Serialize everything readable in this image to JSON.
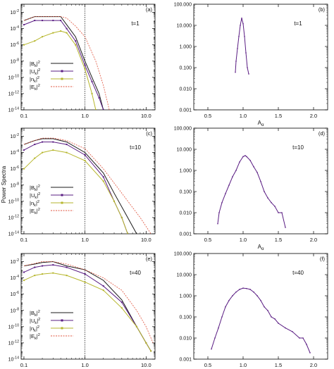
{
  "figure": {
    "ylabel": "Power Spectra",
    "colors": {
      "B": "#1a1a1a",
      "U": "#5a1d83",
      "n": "#b6b62c",
      "E": "#e0553f"
    }
  },
  "chart_data": [
    {
      "id": "a",
      "panel_label": "(a)",
      "annotation": "t=1",
      "type": "line",
      "xscale": "log",
      "yscale": "log",
      "xlim": [
        0.09,
        14
      ],
      "ylim": [
        1e-14,
        0.1
      ],
      "xticks": [
        "0.1",
        "1.0",
        "10.0"
      ],
      "yticks": [
        "10^-2",
        "10^-4",
        "10^-6",
        "10^-8",
        "10^-10",
        "10^-12",
        "10^-14"
      ],
      "xlabel": "",
      "vline_x": 1.0,
      "show_legend": true,
      "legend": [
        "|B_k|^2",
        "|U_k|^2",
        "|n_k|^2",
        "|E_k|^2"
      ],
      "series": [
        {
          "name": "|B_k|^2",
          "key": "B",
          "marker": "none",
          "dash": "solid",
          "x": [
            0.1,
            0.15,
            0.2,
            0.3,
            0.4,
            0.5,
            0.7,
            1.0,
            1.3,
            1.7,
            2.0
          ],
          "y": [
            0.001,
            0.003,
            0.003,
            0.003,
            0.003,
            0.0003,
            1e-05,
            1e-08,
            1e-10,
            1e-12,
            1e-14
          ]
        },
        {
          "name": "|U_k|^2",
          "key": "U",
          "marker": "square",
          "dash": "solid",
          "x": [
            0.1,
            0.15,
            0.2,
            0.3,
            0.4,
            0.5,
            0.7,
            1.0,
            1.3,
            1.7,
            2.0
          ],
          "y": [
            0.0003,
            0.001,
            0.001,
            0.001,
            0.001,
            0.0001,
            3e-06,
            3e-09,
            3e-11,
            3e-13,
            1e-14
          ]
        },
        {
          "name": "|n_k|^2",
          "key": "n",
          "marker": "square",
          "dash": "solid",
          "x": [
            0.1,
            0.15,
            0.2,
            0.3,
            0.4,
            0.5,
            0.7,
            1.0,
            1.3,
            1.5
          ],
          "y": [
            1e-06,
            3e-06,
            1e-05,
            3e-05,
            5e-05,
            3e-05,
            1e-06,
            1e-09,
            1e-12,
            1e-14
          ]
        },
        {
          "name": "|E_k|^2",
          "key": "E",
          "marker": "none",
          "dash": "dashed",
          "x": [
            0.1,
            0.15,
            0.2,
            0.3,
            0.4,
            0.5,
            0.7,
            1.0,
            1.5,
            2.0,
            2.5
          ],
          "y": [
            0.001,
            0.003,
            0.003,
            0.003,
            0.003,
            0.002,
            0.0002,
            1e-05,
            1e-08,
            1e-11,
            1e-14
          ]
        }
      ]
    },
    {
      "id": "b",
      "panel_label": "(b)",
      "annotation": "t=1",
      "type": "line",
      "xscale": "linear",
      "yscale": "log",
      "xlim": [
        0.3,
        2.2
      ],
      "ylim": [
        0.001,
        100
      ],
      "xticks": [
        "0.5",
        "1.0",
        "1.5",
        "2.0"
      ],
      "yticks": [
        "100.000",
        "10.000",
        "1.000",
        "0.100",
        "0.010",
        "0.001"
      ],
      "xlabel": "A_α",
      "vline_x": null,
      "show_legend": false,
      "legend": [],
      "series": [
        {
          "name": "",
          "key": "U",
          "marker": "tiny",
          "dash": "solid",
          "x": [
            0.89,
            0.9,
            0.92,
            0.94,
            0.96,
            0.98,
            1.0,
            1.02,
            1.04,
            1.06,
            1.08
          ],
          "y": [
            0.06,
            0.2,
            0.8,
            3,
            10,
            22,
            12,
            3,
            0.5,
            0.1,
            0.05
          ]
        }
      ]
    },
    {
      "id": "c",
      "panel_label": "(c)",
      "annotation": "t=10",
      "type": "line",
      "xscale": "log",
      "yscale": "log",
      "xlim": [
        0.09,
        14
      ],
      "ylim": [
        1e-14,
        0.1
      ],
      "xticks": [
        "0.1",
        "1.0",
        "10.0"
      ],
      "yticks": [
        "10^-2",
        "10^-4",
        "10^-6",
        "10^-8",
        "10^-10",
        "10^-12",
        "10^-14"
      ],
      "xlabel": "",
      "vline_x": 1.0,
      "show_legend": true,
      "legend": [
        "|B_k|^2",
        "|U_k|^2",
        "|n_k|^2",
        "|E_k|^2"
      ],
      "series": [
        {
          "name": "|B_k|^2",
          "key": "B",
          "marker": "none",
          "dash": "solid",
          "x": [
            0.1,
            0.15,
            0.2,
            0.3,
            0.5,
            1.0,
            2.0,
            3.0,
            5.0,
            7.0
          ],
          "y": [
            0.001,
            0.003,
            0.005,
            0.005,
            0.002,
            0.0001,
            3e-07,
            1e-09,
            1e-12,
            1e-14
          ]
        },
        {
          "name": "|U_k|^2",
          "key": "U",
          "marker": "square",
          "dash": "solid",
          "x": [
            0.1,
            0.15,
            0.2,
            0.3,
            0.5,
            1.0,
            2.0,
            3.0,
            4.0,
            5.0
          ],
          "y": [
            0.0002,
            0.001,
            0.002,
            0.002,
            0.001,
            5e-05,
            1e-07,
            1e-10,
            1e-12,
            1e-14
          ]
        },
        {
          "name": "|n_k|^2",
          "key": "n",
          "marker": "square",
          "dash": "solid",
          "x": [
            0.1,
            0.15,
            0.2,
            0.3,
            0.5,
            1.0,
            2.0,
            3.0,
            4.0,
            5.0
          ],
          "y": [
            1e-06,
            2e-05,
            0.0001,
            0.0002,
            0.0001,
            1e-05,
            3e-08,
            1e-10,
            1e-12,
            1e-14
          ]
        },
        {
          "name": "|E_k|^2",
          "key": "E",
          "marker": "none",
          "dash": "dashed",
          "x": [
            0.1,
            0.15,
            0.2,
            0.3,
            0.5,
            1.0,
            2.0,
            4.0,
            8.0,
            12.0
          ],
          "y": [
            0.001,
            0.003,
            0.006,
            0.006,
            0.003,
            0.0003,
            1e-06,
            1e-09,
            1e-12,
            1e-14
          ]
        }
      ]
    },
    {
      "id": "d",
      "panel_label": "(d)",
      "annotation": "t=10",
      "type": "line",
      "xscale": "linear",
      "yscale": "log",
      "xlim": [
        0.3,
        2.2
      ],
      "ylim": [
        0.001,
        100
      ],
      "xticks": [
        "0.5",
        "1.0",
        "1.5",
        "2.0"
      ],
      "yticks": [
        "100.000",
        "10.000",
        "1.000",
        "0.100",
        "0.010",
        "0.001"
      ],
      "xlabel": "A_α",
      "vline_x": null,
      "show_legend": false,
      "legend": [],
      "series": [
        {
          "name": "",
          "key": "U",
          "marker": "tiny",
          "dash": "solid",
          "x": [
            0.64,
            0.66,
            0.7,
            0.75,
            0.8,
            0.85,
            0.9,
            0.95,
            1.0,
            1.03,
            1.05,
            1.1,
            1.15,
            1.2,
            1.25,
            1.3,
            1.35,
            1.4,
            1.45,
            1.5,
            1.55,
            1.6
          ],
          "y": [
            0.003,
            0.01,
            0.03,
            0.08,
            0.2,
            0.5,
            1.0,
            2.5,
            4.5,
            5.0,
            4.5,
            3.0,
            1.5,
            0.8,
            0.3,
            0.1,
            0.05,
            0.03,
            0.02,
            0.01,
            0.01,
            0.002
          ]
        }
      ]
    },
    {
      "id": "e",
      "panel_label": "(e)",
      "annotation": "t=40",
      "type": "line",
      "xscale": "log",
      "yscale": "log",
      "xlim": [
        0.09,
        14
      ],
      "ylim": [
        1e-14,
        0.1
      ],
      "xticks": [
        "0.1",
        "1.0",
        "10.0"
      ],
      "yticks": [
        "10^-2",
        "10^-4",
        "10^-6",
        "10^-8",
        "10^-10",
        "10^-12",
        "10^-14"
      ],
      "xlabel": "k",
      "vline_x": 1.0,
      "show_legend": true,
      "legend": [
        "|B_k|^2",
        "|U_k|^2",
        "|n_k|^2",
        "|E_k|^2"
      ],
      "series": [
        {
          "name": "|B_k|^2",
          "key": "B",
          "marker": "none",
          "dash": "solid",
          "x": [
            0.1,
            0.15,
            0.2,
            0.3,
            0.5,
            1.0,
            2.0,
            4.0,
            7.0,
            10.0,
            12.0
          ],
          "y": [
            0.003,
            0.005,
            0.008,
            0.01,
            0.003,
            0.001,
            5e-05,
            2e-07,
            1e-10,
            1e-12,
            1e-13
          ]
        },
        {
          "name": "|U_k|^2",
          "key": "U",
          "marker": "square",
          "dash": "solid",
          "x": [
            0.1,
            0.15,
            0.2,
            0.3,
            0.5,
            1.0,
            2.0,
            4.0,
            7.0,
            10.0,
            12.0
          ],
          "y": [
            0.0005,
            0.002,
            0.003,
            0.004,
            0.002,
            0.0003,
            1e-05,
            1e-07,
            1e-10,
            1e-12,
            1e-13
          ]
        },
        {
          "name": "|n_k|^2",
          "key": "n",
          "marker": "square",
          "dash": "solid",
          "x": [
            0.1,
            0.15,
            0.2,
            0.3,
            0.5,
            1.0,
            2.0,
            4.0,
            7.0,
            10.0,
            12.0
          ],
          "y": [
            5e-05,
            0.0002,
            0.0003,
            0.0004,
            0.0002,
            3e-05,
            3e-06,
            2e-08,
            1e-10,
            1e-12,
            1e-13
          ]
        },
        {
          "name": "|E_k|^2",
          "key": "E",
          "marker": "none",
          "dash": "dashed",
          "x": [
            0.1,
            0.15,
            0.2,
            0.3,
            0.5,
            1.0,
            2.0,
            4.0,
            7.0,
            10.0,
            13.0
          ],
          "y": [
            0.003,
            0.006,
            0.01,
            0.01,
            0.005,
            0.001,
            0.0001,
            3e-06,
            1e-08,
            1e-10,
            1e-12
          ]
        }
      ]
    },
    {
      "id": "f",
      "panel_label": "(f)",
      "annotation": "t=40",
      "type": "line",
      "xscale": "linear",
      "yscale": "log",
      "xlim": [
        0.3,
        2.2
      ],
      "ylim": [
        0.001,
        100
      ],
      "xticks": [
        "0.5",
        "1.0",
        "1.5",
        "2.0"
      ],
      "yticks": [
        "100.000",
        "10.000",
        "1.000",
        "0.100",
        "0.010",
        "0.001"
      ],
      "xlabel": "A_α",
      "vline_x": null,
      "show_legend": false,
      "legend": [],
      "series": [
        {
          "name": "",
          "key": "U",
          "marker": "tiny",
          "dash": "solid",
          "x": [
            0.55,
            0.6,
            0.65,
            0.7,
            0.75,
            0.8,
            0.85,
            0.9,
            0.95,
            1.0,
            1.05,
            1.1,
            1.15,
            1.2,
            1.25,
            1.3,
            1.35,
            1.4,
            1.45,
            1.5,
            1.6,
            1.7,
            1.8,
            1.85,
            1.9,
            1.95
          ],
          "y": [
            0.003,
            0.01,
            0.03,
            0.1,
            0.3,
            0.6,
            1.0,
            1.5,
            2.0,
            2.3,
            2.2,
            2.0,
            1.5,
            1.0,
            0.6,
            0.3,
            0.2,
            0.1,
            0.08,
            0.05,
            0.03,
            0.02,
            0.01,
            0.01,
            0.005,
            0.002
          ]
        }
      ]
    }
  ]
}
